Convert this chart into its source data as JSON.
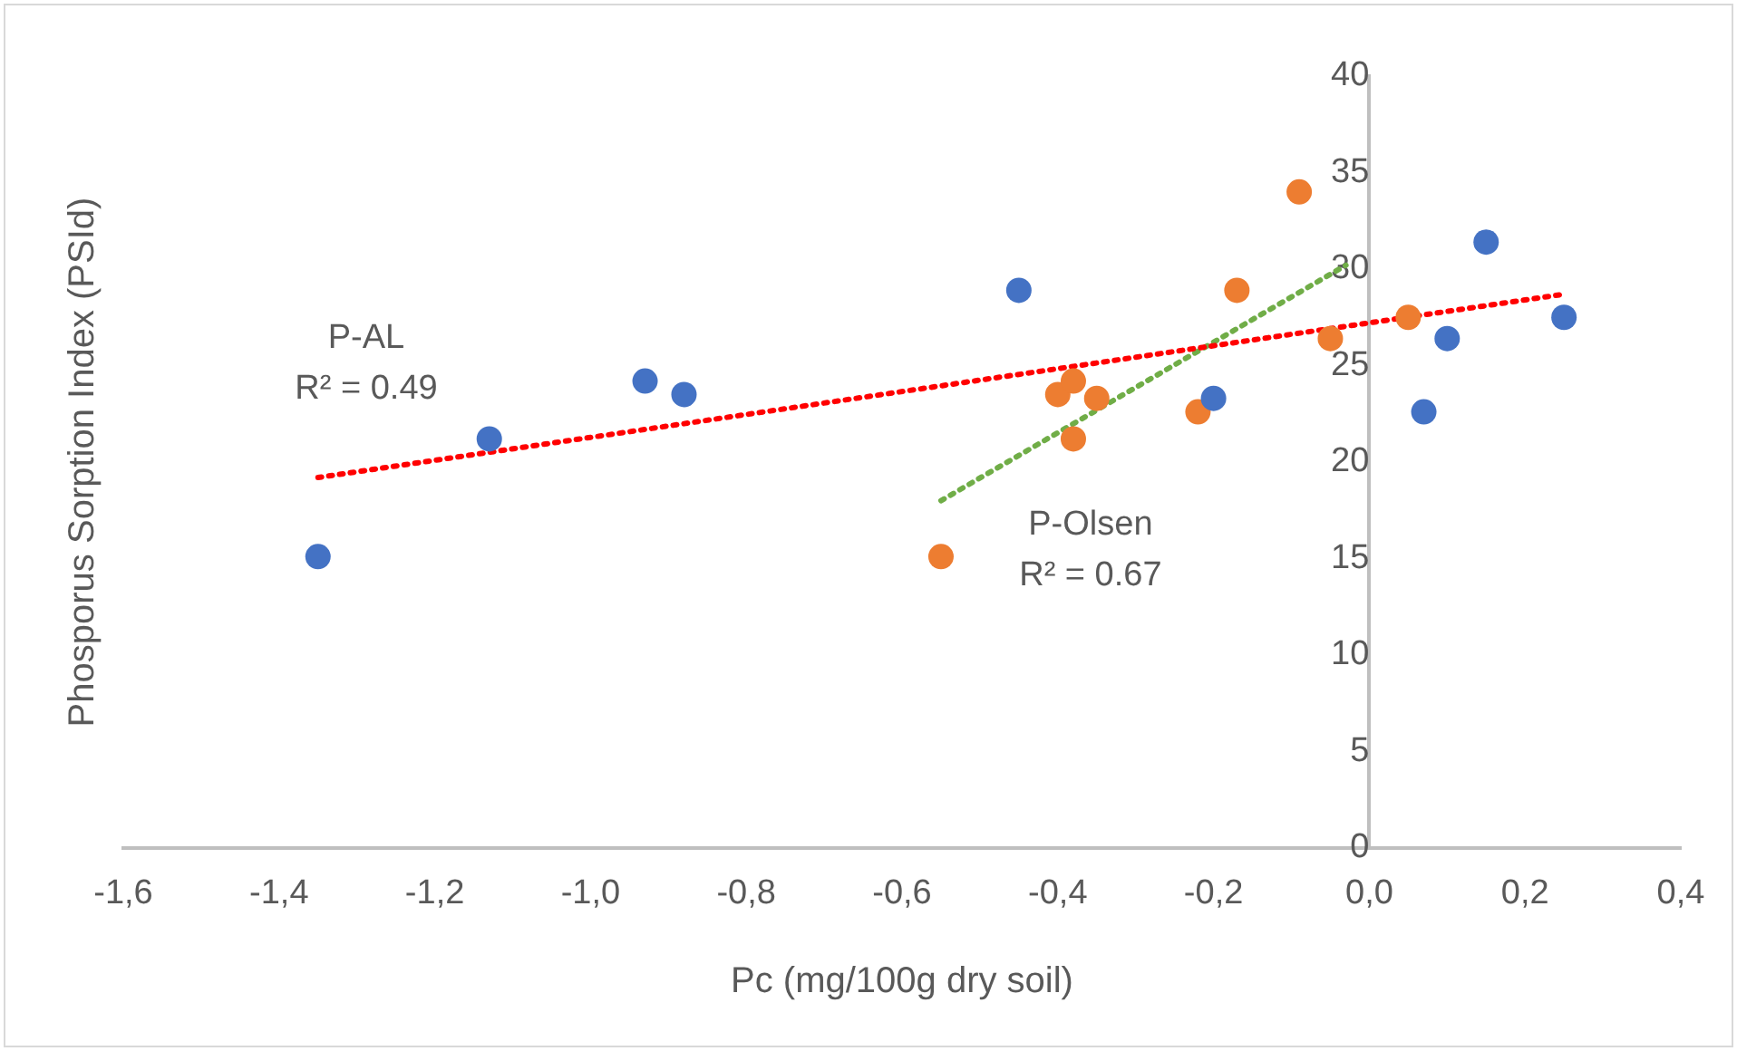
{
  "chart_data": {
    "type": "scatter",
    "xlabel": "Pc (mg/100g dry soil)",
    "ylabel": "Phosporus Sorption Index (PSId)",
    "series": [
      {
        "color": "#4472c4",
        "x": [
          -1.35,
          -1.13,
          -0.93,
          -0.88,
          -0.45,
          -0.2,
          0.07,
          0.1,
          0.15,
          0.25
        ],
        "values": [
          15.1,
          21.2,
          24.2,
          23.5,
          28.9,
          23.3,
          22.6,
          26.4,
          31.4,
          27.5
        ]
      },
      {
        "color": "#ed7d31",
        "x": [
          -0.55,
          -0.4,
          -0.38,
          -0.38,
          -0.35,
          -0.22,
          -0.17,
          -0.09,
          -0.05,
          0.05
        ],
        "values": [
          15.1,
          23.5,
          24.2,
          21.2,
          23.3,
          22.6,
          28.9,
          34,
          26.4,
          27.5
        ]
      },
      {
        "type": "line",
        "color": "#ff0000",
        "line_style": "dotted",
        "marker": "none",
        "x": [
          -1.35,
          0.25
        ],
        "values": [
          19.2,
          28.7
        ]
      },
      {
        "type": "line",
        "color": "#70ad47",
        "line_style": "dotted",
        "marker": "none",
        "x": [
          -0.55,
          -0.03
        ],
        "values": [
          18,
          30.2
        ]
      }
    ],
    "annotations": [
      "P-AL\nR² = 0.49",
      "P-Olsen\nR² = 0.67"
    ],
    "marker": "circle",
    "legend": false,
    "grid": false,
    "xlim": [
      -1.6,
      0.4
    ],
    "xticks": [
      {
        "value": -1.6,
        "label": "-1,6"
      },
      {
        "value": -1.4,
        "label": "-1,4"
      },
      {
        "value": -1.2,
        "label": "-1,2"
      },
      {
        "value": -1,
        "label": "-1,0"
      },
      {
        "value": -0.8,
        "label": "-0,8"
      },
      {
        "value": -0.6,
        "label": "-0,6"
      },
      {
        "value": -0.4,
        "label": "-0,4"
      },
      {
        "value": -0.2,
        "label": "-0,2"
      },
      {
        "value": 0,
        "label": "0,0"
      },
      {
        "value": 0.2,
        "label": "0,2"
      },
      {
        "value": 0.4,
        "label": "0,4"
      }
    ],
    "ylim": [
      0,
      40
    ],
    "yticks": [
      0,
      5,
      10,
      15,
      20,
      25,
      30,
      35,
      40
    ]
  }
}
